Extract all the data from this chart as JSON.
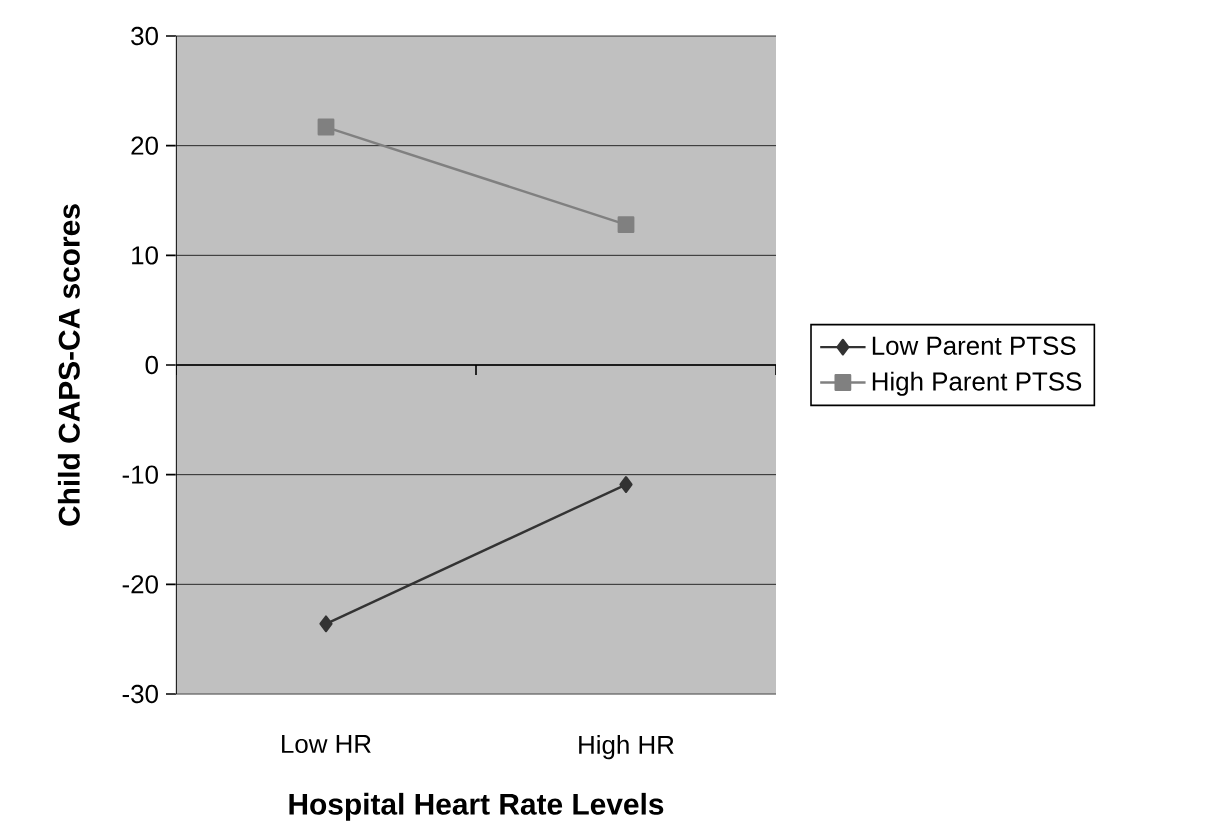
{
  "chart_data": {
    "type": "line",
    "xlabel": "Hospital Heart Rate Levels",
    "ylabel": "Child CAPS-CA scores",
    "categories": [
      "Low HR",
      "High HR"
    ],
    "series": [
      {
        "name": "Low Parent PTSS",
        "color": "#333333",
        "marker": "diamond",
        "values": [
          -23.6,
          -10.9
        ]
      },
      {
        "name": "High Parent PTSS",
        "color": "#808080",
        "marker": "square",
        "values": [
          21.7,
          12.8
        ]
      }
    ],
    "ylim": [
      -30,
      30
    ],
    "yticks": [
      -30,
      -20,
      -10,
      0,
      10,
      20,
      30
    ],
    "grid": "y",
    "legend": "right",
    "line_style": "solid"
  }
}
